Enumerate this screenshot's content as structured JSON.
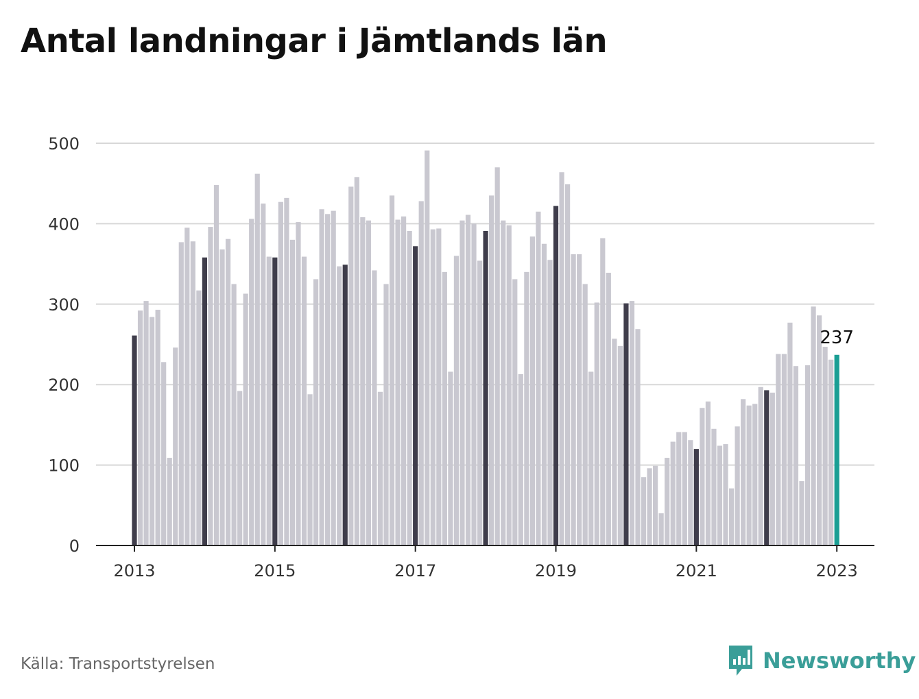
{
  "title": "Antal landningar i Jämtlands län",
  "source": "Källa: Transportstyrelsen",
  "brand": {
    "name": "Newsworthy",
    "icon": "newsworthy-logo-icon"
  },
  "colors": {
    "bar": "#c9c8d0",
    "january_bar": "#3f3d4b",
    "highlight": "#1a9e94",
    "grid": "#d8d8d8",
    "axis": "#222222",
    "brand": "#3a9e98"
  },
  "chart_data": {
    "type": "bar",
    "title": "Antal landningar i Jämtlands län",
    "xlabel": "",
    "ylabel": "",
    "ylim": [
      0,
      500
    ],
    "yticks": [
      0,
      100,
      200,
      300,
      400,
      500
    ],
    "xticks": [
      "2013",
      "2015",
      "2017",
      "2019",
      "2021",
      "2023"
    ],
    "grid": true,
    "highlight_label": "237",
    "categories": [
      "2013-01",
      "2013-02",
      "2013-03",
      "2013-04",
      "2013-05",
      "2013-06",
      "2013-07",
      "2013-08",
      "2013-09",
      "2013-10",
      "2013-11",
      "2013-12",
      "2014-01",
      "2014-02",
      "2014-03",
      "2014-04",
      "2014-05",
      "2014-06",
      "2014-07",
      "2014-08",
      "2014-09",
      "2014-10",
      "2014-11",
      "2014-12",
      "2015-01",
      "2015-02",
      "2015-03",
      "2015-04",
      "2015-05",
      "2015-06",
      "2015-07",
      "2015-08",
      "2015-09",
      "2015-10",
      "2015-11",
      "2015-12",
      "2016-01",
      "2016-02",
      "2016-03",
      "2016-04",
      "2016-05",
      "2016-06",
      "2016-07",
      "2016-08",
      "2016-09",
      "2016-10",
      "2016-11",
      "2016-12",
      "2017-01",
      "2017-02",
      "2017-03",
      "2017-04",
      "2017-05",
      "2017-06",
      "2017-07",
      "2017-08",
      "2017-09",
      "2017-10",
      "2017-11",
      "2017-12",
      "2018-01",
      "2018-02",
      "2018-03",
      "2018-04",
      "2018-05",
      "2018-06",
      "2018-07",
      "2018-08",
      "2018-09",
      "2018-10",
      "2018-11",
      "2018-12",
      "2019-01",
      "2019-02",
      "2019-03",
      "2019-04",
      "2019-05",
      "2019-06",
      "2019-07",
      "2019-08",
      "2019-09",
      "2019-10",
      "2019-11",
      "2019-12",
      "2020-01",
      "2020-02",
      "2020-03",
      "2020-04",
      "2020-05",
      "2020-06",
      "2020-07",
      "2020-08",
      "2020-09",
      "2020-10",
      "2020-11",
      "2020-12",
      "2021-01",
      "2021-02",
      "2021-03",
      "2021-04",
      "2021-05",
      "2021-06",
      "2021-07",
      "2021-08",
      "2021-09",
      "2021-10",
      "2021-11",
      "2021-12",
      "2022-01",
      "2022-02",
      "2022-03",
      "2022-04",
      "2022-05",
      "2022-06",
      "2022-07",
      "2022-08",
      "2022-09",
      "2022-10",
      "2022-11",
      "2022-12",
      "2023-01"
    ],
    "values": [
      261,
      292,
      304,
      284,
      293,
      228,
      109,
      246,
      377,
      395,
      378,
      317,
      358,
      396,
      448,
      368,
      381,
      325,
      192,
      313,
      406,
      462,
      425,
      359,
      358,
      427,
      432,
      380,
      402,
      359,
      188,
      331,
      418,
      412,
      416,
      347,
      349,
      446,
      458,
      408,
      404,
      342,
      191,
      325,
      435,
      405,
      409,
      391,
      372,
      428,
      491,
      393,
      394,
      340,
      216,
      360,
      404,
      411,
      400,
      354,
      391,
      435,
      470,
      404,
      398,
      331,
      213,
      340,
      384,
      415,
      375,
      355,
      422,
      464,
      449,
      362,
      362,
      325,
      216,
      302,
      382,
      339,
      257,
      248,
      301,
      304,
      269,
      85,
      96,
      99,
      40,
      109,
      129,
      141,
      141,
      131,
      120,
      171,
      179,
      145,
      124,
      126,
      71,
      148,
      182,
      174,
      176,
      197,
      193,
      190,
      238,
      238,
      277,
      223,
      80,
      224,
      297,
      286,
      247,
      231,
      237
    ]
  }
}
